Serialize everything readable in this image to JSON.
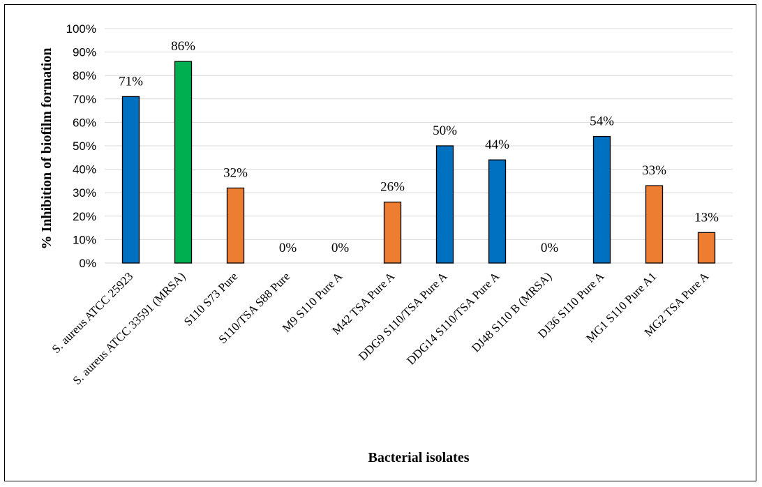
{
  "chart_data": {
    "type": "bar",
    "title": "",
    "xlabel": "Bacterial isolates",
    "ylabel": "% Inhibition of biofilm formation",
    "ylim": [
      0,
      100
    ],
    "yticks": [
      "0%",
      "10%",
      "20%",
      "30%",
      "40%",
      "50%",
      "60%",
      "70%",
      "80%",
      "90%",
      "100%"
    ],
    "grid": true,
    "legend": "none",
    "categories": [
      "S. aureus ATCC 25923",
      "S. aureus ATCC 33591 (MRSA)",
      "S110 S73 Pure",
      "S110/TSA S88 Pure",
      "M9 S110 Pure A",
      "M42 TSA Pure A",
      "DDG9 S110/TSA Pure A",
      "DDG14 S110/TSA Pure A",
      "DJ48 S110 B (MRSA)",
      "DJ36 S110 Pure A",
      "MG1 S110 Pure A1",
      "MG2 TSA Pure A"
    ],
    "values": [
      71,
      86,
      32,
      0,
      0,
      26,
      50,
      44,
      0,
      54,
      33,
      13
    ],
    "data_labels": [
      "71%",
      "86%",
      "32%",
      "0%",
      "0%",
      "26%",
      "50%",
      "44%",
      "0%",
      "54%",
      "33%",
      "13%"
    ],
    "bar_colors": [
      "#0070c0",
      "#00b050",
      "#ed7d31",
      "#ed7d31",
      "#ed7d31",
      "#ed7d31",
      "#0070c0",
      "#0070c0",
      "#0070c0",
      "#0070c0",
      "#ed7d31",
      "#ed7d31"
    ],
    "gridline_color": "#d9d9d9"
  }
}
